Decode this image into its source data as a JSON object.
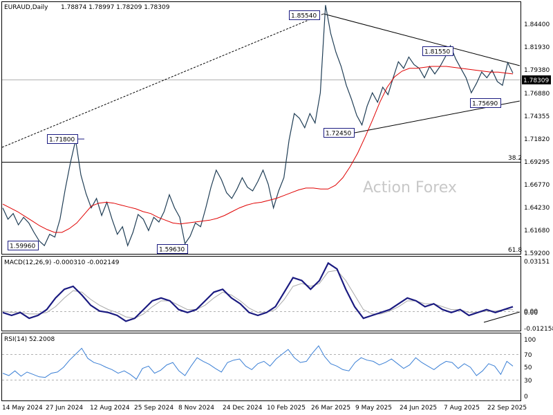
{
  "header": {
    "symbol": "EURAUD,Daily",
    "ohlc": "1.78874 1.78997 1.78209 1.78309"
  },
  "watermark": "Action Forex",
  "price_panel": {
    "type": "line",
    "price_axis_ticks": [
      "1.84400",
      "1.81930",
      "1.79380",
      "1.76880",
      "1.74355",
      "1.71820",
      "1.69295",
      "1.66770",
      "1.64230",
      "1.61680",
      "1.59200"
    ],
    "current_price_label": "1.78309",
    "fib_labels": {
      "f382": "38.2",
      "f618": "61.8"
    },
    "annotations": [
      "1.85540",
      "1.81550",
      "1.75690",
      "1.72450",
      "1.71800",
      "1.59960",
      "1.59630"
    ],
    "colors": {
      "price": "#1f3d55",
      "ma": "#e00000",
      "trend": "#000000",
      "current_box": "#000000"
    }
  },
  "macd_panel": {
    "label": "MACD(12,26,9) -0.000310 -0.002149",
    "axis_ticks": [
      "0.03151",
      "0.00",
      "0.00",
      "-0.012158"
    ],
    "colors": {
      "macd": "#1a1a80",
      "signal": "#a8a8a8"
    }
  },
  "rsi_panel": {
    "label": "RSI(14) 52.2008",
    "axis_ticks": [
      "100",
      "70",
      "50",
      "30",
      "0"
    ],
    "colors": {
      "rsi": "#3a7fd5"
    }
  },
  "x_axis_labels": [
    "14 May 2024",
    "27 Jun 2024",
    "12 Aug 2024",
    "25 Sep 2024",
    "8 Nov 2024",
    "24 Dec 2024",
    "10 Feb 2025",
    "26 Mar 2025",
    "9 May 2025",
    "24 Jun 2025",
    "7 Aug 2025",
    "22 Sep 2025"
  ],
  "chart_data": {
    "type": "line",
    "ylim": [
      1.592,
      1.8575
    ],
    "series": [
      {
        "values": [
          1.64,
          1.628,
          1.634,
          1.622,
          1.63,
          1.624,
          1.614,
          1.605,
          1.6,
          1.612,
          1.609,
          1.628,
          1.66,
          1.688,
          1.712,
          1.675,
          1.655,
          1.64,
          1.65,
          1.632,
          1.646,
          1.628,
          1.612,
          1.62,
          1.6,
          1.614,
          1.633,
          1.628,
          1.616,
          1.63,
          1.625,
          1.636,
          1.654,
          1.64,
          1.63,
          1.602,
          1.61,
          1.624,
          1.62,
          1.64,
          1.662,
          1.68,
          1.67,
          1.656,
          1.65,
          1.66,
          1.672,
          1.662,
          1.658,
          1.668,
          1.68,
          1.665,
          1.64,
          1.658,
          1.672,
          1.712,
          1.74,
          1.735,
          1.725,
          1.74,
          1.73,
          1.762,
          1.855,
          1.825,
          1.805,
          1.79,
          1.77,
          1.755,
          1.738,
          1.728,
          1.748,
          1.762,
          1.752,
          1.768,
          1.76,
          1.778,
          1.795,
          1.788,
          1.8,
          1.792,
          1.788,
          1.778,
          1.79,
          1.782,
          1.79,
          1.8,
          1.812,
          1.798,
          1.788,
          1.778,
          1.762,
          1.772,
          1.784,
          1.778,
          1.786,
          1.774,
          1.77,
          1.794,
          1.783
        ]
      },
      {
        "values": [
          1.644,
          1.64,
          1.636,
          1.631,
          1.626,
          1.621,
          1.617,
          1.614,
          1.614,
          1.618,
          1.624,
          1.633,
          1.642,
          1.645,
          1.646,
          1.645,
          1.643,
          1.641,
          1.639,
          1.636,
          1.634,
          1.63,
          1.627,
          1.624,
          1.623,
          1.624,
          1.625,
          1.626,
          1.627,
          1.629,
          1.632,
          1.636,
          1.64,
          1.643,
          1.645,
          1.646,
          1.648,
          1.65,
          1.653,
          1.656,
          1.659,
          1.661,
          1.661,
          1.66,
          1.66,
          1.664,
          1.672,
          1.684,
          1.698,
          1.715,
          1.733,
          1.752,
          1.768,
          1.779,
          1.785,
          1.788,
          1.788,
          1.789,
          1.79,
          1.79,
          1.79,
          1.789,
          1.788,
          1.787,
          1.786,
          1.785,
          1.784,
          1.784,
          1.783,
          1.782
        ]
      }
    ]
  },
  "macd_data": {
    "ylim": [
      -0.016,
      0.034
    ],
    "macd": [
      -0.004,
      -0.006,
      -0.004,
      -0.008,
      -0.006,
      -0.002,
      0.006,
      0.012,
      0.014,
      0.008,
      0.001,
      -0.003,
      -0.004,
      -0.006,
      -0.01,
      -0.008,
      -0.002,
      0.004,
      0.006,
      0.004,
      -0.002,
      -0.004,
      -0.002,
      0.004,
      0.01,
      0.012,
      0.006,
      0.002,
      -0.004,
      -0.006,
      -0.004,
      0.0,
      0.01,
      0.02,
      0.018,
      0.012,
      0.018,
      0.03,
      0.026,
      0.012,
      0.0,
      -0.008,
      -0.006,
      -0.004,
      -0.002,
      0.002,
      0.006,
      0.004,
      0.0,
      0.002,
      -0.002,
      -0.004,
      -0.002,
      -0.006,
      -0.004,
      -0.002,
      -0.004,
      -0.002,
      0.0
    ],
    "signal": [
      -0.003,
      -0.004,
      -0.004,
      -0.005,
      -0.005,
      -0.004,
      0.0,
      0.006,
      0.011,
      0.01,
      0.005,
      0.001,
      -0.002,
      -0.004,
      -0.007,
      -0.008,
      -0.005,
      0.0,
      0.004,
      0.004,
      0.001,
      -0.002,
      -0.002,
      0.001,
      0.006,
      0.01,
      0.008,
      0.004,
      -0.001,
      -0.004,
      -0.004,
      -0.002,
      0.005,
      0.014,
      0.016,
      0.014,
      0.016,
      0.024,
      0.025,
      0.018,
      0.008,
      -0.002,
      -0.005,
      -0.005,
      -0.003,
      0.0,
      0.004,
      0.004,
      0.002,
      0.002,
      0.0,
      -0.002,
      -0.002,
      -0.004,
      -0.004,
      -0.003,
      -0.003,
      -0.002,
      -0.002
    ]
  },
  "rsi_data": {
    "ylim": [
      0,
      100
    ],
    "values": [
      40,
      36,
      44,
      35,
      42,
      38,
      34,
      33,
      40,
      42,
      50,
      62,
      72,
      82,
      65,
      58,
      55,
      50,
      46,
      40,
      44,
      38,
      30,
      48,
      52,
      40,
      45,
      54,
      58,
      44,
      36,
      52,
      66,
      60,
      55,
      48,
      42,
      58,
      62,
      64,
      52,
      46,
      56,
      60,
      52,
      64,
      72,
      80,
      66,
      58,
      60,
      74,
      86,
      68,
      56,
      52,
      46,
      44,
      58,
      66,
      62,
      60,
      54,
      58,
      64,
      56,
      48,
      54,
      66,
      58,
      52,
      46,
      54,
      60,
      58,
      48,
      56,
      50,
      36,
      44,
      56,
      52,
      38,
      60,
      52
    ]
  }
}
